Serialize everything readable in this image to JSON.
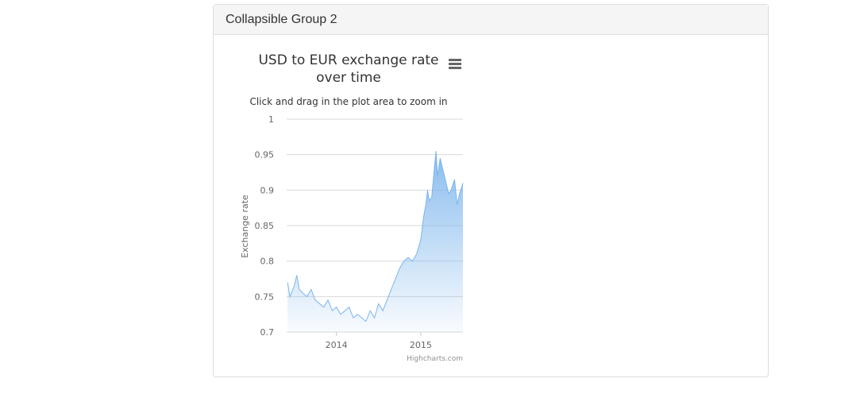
{
  "panel": {
    "title": "Collapsible Group 2"
  },
  "chart_data": {
    "type": "area",
    "title": "USD to EUR exchange rate over time",
    "subtitle": "Click and drag in the plot area to zoom in",
    "y_label": "Exchange rate",
    "credits": "Highcharts.com",
    "color": "#7cb5ec",
    "grid": true,
    "x": [
      2013.42,
      2013.45,
      2013.5,
      2013.53,
      2013.56,
      2013.6,
      2013.65,
      2013.7,
      2013.75,
      2013.8,
      2013.85,
      2013.9,
      2013.95,
      2014.0,
      2014.05,
      2014.1,
      2014.15,
      2014.2,
      2014.25,
      2014.3,
      2014.35,
      2014.4,
      2014.45,
      2014.5,
      2014.55,
      2014.6,
      2014.65,
      2014.7,
      2014.75,
      2014.8,
      2014.85,
      2014.9,
      2014.95,
      2015.0,
      2015.03,
      2015.06,
      2015.08,
      2015.1,
      2015.13,
      2015.16,
      2015.18,
      2015.2,
      2015.23,
      2015.26,
      2015.3,
      2015.33,
      2015.36,
      2015.4,
      2015.43,
      2015.46,
      2015.5
    ],
    "values": [
      0.77,
      0.75,
      0.765,
      0.78,
      0.76,
      0.755,
      0.75,
      0.76,
      0.745,
      0.74,
      0.735,
      0.745,
      0.73,
      0.735,
      0.725,
      0.73,
      0.735,
      0.72,
      0.725,
      0.72,
      0.715,
      0.73,
      0.72,
      0.74,
      0.73,
      0.745,
      0.76,
      0.775,
      0.79,
      0.8,
      0.805,
      0.8,
      0.81,
      0.83,
      0.86,
      0.88,
      0.9,
      0.885,
      0.89,
      0.93,
      0.955,
      0.92,
      0.945,
      0.93,
      0.91,
      0.895,
      0.9,
      0.915,
      0.88,
      0.895,
      0.91
    ],
    "xlim": [
      2013.41,
      2015.5
    ],
    "xticks": [
      2014,
      2015
    ],
    "ylim": [
      0.7,
      1
    ],
    "yticks": [
      0.7,
      0.75,
      0.8,
      0.85,
      0.9,
      0.95,
      1
    ]
  }
}
